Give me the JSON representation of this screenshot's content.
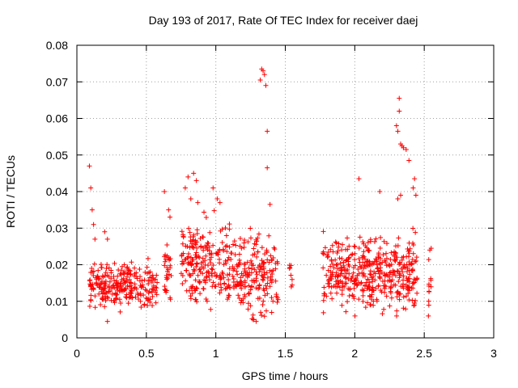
{
  "chart_data": {
    "type": "scatter",
    "title": "Day 193 of 2017, Rate Of TEC Index for receiver daej",
    "xlabel": "GPS time / hours",
    "ylabel": "ROTI / TECUs",
    "xlim": [
      0,
      3
    ],
    "ylim": [
      0,
      0.08
    ],
    "xticks": [
      0,
      0.5,
      1,
      1.5,
      2,
      2.5,
      3
    ],
    "xtick_labels": [
      "0",
      "0.5",
      "1",
      "1.5",
      "2",
      "2.5",
      "3"
    ],
    "yticks": [
      0,
      0.01,
      0.02,
      0.03,
      0.04,
      0.05,
      0.06,
      0.07,
      0.08
    ],
    "ytick_labels": [
      "0",
      "0.01",
      "0.02",
      "0.03",
      "0.04",
      "0.05",
      "0.06",
      "0.07",
      "0.08"
    ],
    "grid": true,
    "marker": "+",
    "color": "#ff0000",
    "clusters": [
      {
        "x_start": 0.09,
        "x_end": 0.58,
        "y_min": 0.006,
        "y_max": 0.024,
        "y_center": 0.014,
        "count": 260
      },
      {
        "x_start": 0.63,
        "x_end": 0.68,
        "y_min": 0.008,
        "y_max": 0.028,
        "y_center": 0.017,
        "count": 30
      },
      {
        "x_start": 0.75,
        "x_end": 1.08,
        "y_min": 0.006,
        "y_max": 0.04,
        "y_center": 0.018,
        "count": 200
      },
      {
        "x_start": 1.08,
        "x_end": 1.45,
        "y_min": 0.005,
        "y_max": 0.036,
        "y_center": 0.016,
        "count": 210
      },
      {
        "x_start": 1.53,
        "x_end": 1.55,
        "y_min": 0.008,
        "y_max": 0.033,
        "y_center": 0.018,
        "count": 8
      },
      {
        "x_start": 1.77,
        "x_end": 2.1,
        "y_min": 0.006,
        "y_max": 0.032,
        "y_center": 0.017,
        "count": 200
      },
      {
        "x_start": 2.1,
        "x_end": 2.45,
        "y_min": 0.006,
        "y_max": 0.035,
        "y_center": 0.015,
        "count": 240
      },
      {
        "x_start": 2.53,
        "x_end": 2.55,
        "y_min": 0.006,
        "y_max": 0.025,
        "y_center": 0.015,
        "count": 10
      }
    ],
    "points": [
      {
        "x": 0.09,
        "y": 0.047
      },
      {
        "x": 0.1,
        "y": 0.041
      },
      {
        "x": 0.11,
        "y": 0.035
      },
      {
        "x": 0.12,
        "y": 0.031
      },
      {
        "x": 0.13,
        "y": 0.027
      },
      {
        "x": 0.2,
        "y": 0.029
      },
      {
        "x": 0.22,
        "y": 0.027
      },
      {
        "x": 0.22,
        "y": 0.0045
      },
      {
        "x": 0.66,
        "y": 0.035
      },
      {
        "x": 0.67,
        "y": 0.033
      },
      {
        "x": 0.63,
        "y": 0.04
      },
      {
        "x": 0.78,
        "y": 0.041
      },
      {
        "x": 0.8,
        "y": 0.044
      },
      {
        "x": 0.84,
        "y": 0.045
      },
      {
        "x": 0.86,
        "y": 0.043
      },
      {
        "x": 0.82,
        "y": 0.038
      },
      {
        "x": 0.87,
        "y": 0.037
      },
      {
        "x": 0.98,
        "y": 0.041
      },
      {
        "x": 1.01,
        "y": 0.038
      },
      {
        "x": 1.03,
        "y": 0.037
      },
      {
        "x": 1.29,
        "y": 0.0045
      },
      {
        "x": 1.27,
        "y": 0.005
      },
      {
        "x": 1.32,
        "y": 0.0705
      },
      {
        "x": 1.33,
        "y": 0.0735
      },
      {
        "x": 1.34,
        "y": 0.073
      },
      {
        "x": 1.35,
        "y": 0.072
      },
      {
        "x": 1.36,
        "y": 0.069
      },
      {
        "x": 1.37,
        "y": 0.0565
      },
      {
        "x": 1.37,
        "y": 0.0465
      },
      {
        "x": 1.39,
        "y": 0.0365
      },
      {
        "x": 2.03,
        "y": 0.0435
      },
      {
        "x": 2.18,
        "y": 0.04
      },
      {
        "x": 2.3,
        "y": 0.058
      },
      {
        "x": 2.31,
        "y": 0.0565
      },
      {
        "x": 2.32,
        "y": 0.0655
      },
      {
        "x": 2.32,
        "y": 0.062
      },
      {
        "x": 2.33,
        "y": 0.053
      },
      {
        "x": 2.34,
        "y": 0.0525
      },
      {
        "x": 2.35,
        "y": 0.052
      },
      {
        "x": 2.37,
        "y": 0.0515
      },
      {
        "x": 2.39,
        "y": 0.0485
      },
      {
        "x": 2.43,
        "y": 0.0435
      },
      {
        "x": 2.42,
        "y": 0.041
      },
      {
        "x": 2.44,
        "y": 0.039
      },
      {
        "x": 2.31,
        "y": 0.038
      },
      {
        "x": 2.33,
        "y": 0.039
      },
      {
        "x": 2.53,
        "y": 0.006
      },
      {
        "x": 2.54,
        "y": 0.024
      },
      {
        "x": 2.55,
        "y": 0.0245
      }
    ]
  }
}
